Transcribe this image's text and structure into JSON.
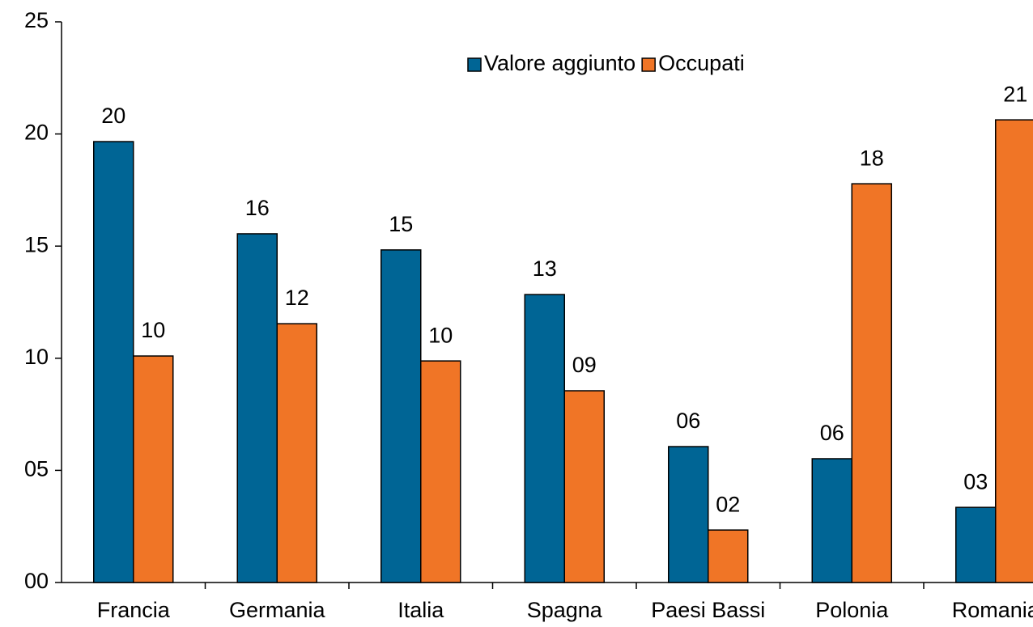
{
  "chart_data": {
    "type": "bar",
    "categories": [
      "Francia",
      "Germania",
      "Italia",
      "Spagna",
      "Paesi Bassi",
      "Polonia",
      "Romania"
    ],
    "series": [
      {
        "name": "Valore aggiunto",
        "color": "#006595",
        "values": [
          19.66,
          15.55,
          14.83,
          12.84,
          6.06,
          5.52,
          3.35
        ],
        "value_labels": [
          "20",
          "16",
          "15",
          "13",
          "06",
          "06",
          "03"
        ]
      },
      {
        "name": "Occupati",
        "color": "#f07526",
        "values": [
          10.1,
          11.54,
          9.88,
          8.55,
          2.34,
          17.78,
          20.63
        ],
        "value_labels": [
          "10",
          "12",
          "10",
          "09",
          "02",
          "18",
          "21"
        ]
      }
    ],
    "ylim": [
      0,
      25
    ],
    "yticks": [
      {
        "value": 0,
        "label": "00"
      },
      {
        "value": 5,
        "label": "05"
      },
      10,
      15,
      20,
      25
    ],
    "grid": false,
    "legend": "top"
  }
}
